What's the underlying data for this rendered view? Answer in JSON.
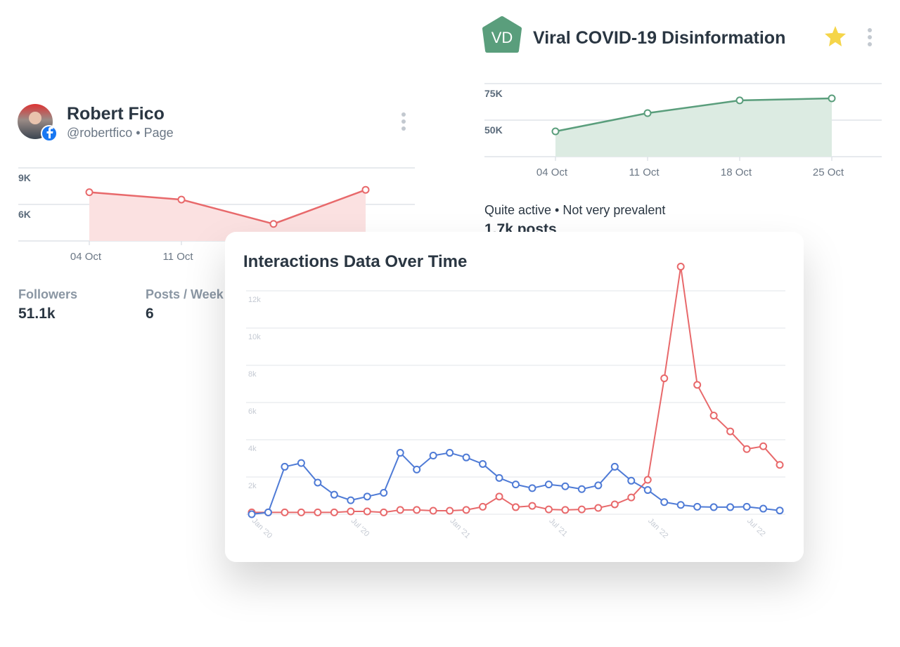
{
  "profile_card": {
    "name": "Robert Fico",
    "handle": "@robertfico • Page",
    "stats": [
      {
        "label": "Followers",
        "value": "51.1k"
      },
      {
        "label": "Posts / Week",
        "value": "6"
      }
    ]
  },
  "list_card": {
    "badge": "VD",
    "title": "Viral COVID-19 Disinformation",
    "summary": "Quite active • Not very prevalent",
    "posts": "1.7k posts"
  },
  "chart_data": [
    {
      "type": "line",
      "area": true,
      "color": "#e8696b",
      "fill": "#fbe1e1",
      "categories": [
        "04 Oct",
        "11 Oct",
        null,
        null
      ],
      "values": [
        7000,
        6400,
        4400,
        7200
      ],
      "ylim": [
        3000,
        9000
      ],
      "yticks": [
        {
          "value": 9000,
          "label": "9K"
        },
        {
          "value": 6000,
          "label": "6K"
        }
      ],
      "grid": true
    },
    {
      "type": "line",
      "area": true,
      "color": "#5a9e7c",
      "fill": "#dcebe2",
      "categories": [
        "04 Oct",
        "11 Oct",
        "18 Oct",
        "25 Oct"
      ],
      "values": [
        42300,
        54800,
        63500,
        64900
      ],
      "ylim": [
        25000,
        75000
      ],
      "yticks": [
        {
          "value": 75000,
          "label": "75K"
        },
        {
          "value": 50000,
          "label": "50K"
        }
      ],
      "grid": true
    },
    {
      "type": "line",
      "area": false,
      "title": "Interactions Data Over Time",
      "categories": [
        "Jan '20",
        null,
        null,
        null,
        null,
        null,
        "Jul '20",
        null,
        null,
        null,
        null,
        null,
        "Jan '21",
        null,
        null,
        null,
        null,
        null,
        "Jul '21",
        null,
        null,
        null,
        null,
        null,
        "Jan '22",
        null,
        null,
        null,
        null,
        null,
        "Jul '22",
        null,
        null
      ],
      "series": [
        {
          "color": "#e8696b",
          "values": [
            100,
            100,
            100,
            100,
            100,
            100,
            150,
            150,
            100,
            230,
            230,
            190,
            190,
            230,
            400,
            950,
            380,
            450,
            260,
            230,
            260,
            340,
            530,
            900,
            1850,
            7300,
            13300,
            6950,
            5300,
            4450,
            3500,
            3650,
            2650
          ]
        },
        {
          "color": "#4f7bd6",
          "values": [
            0,
            100,
            2550,
            2750,
            1700,
            1050,
            750,
            950,
            1150,
            3300,
            2400,
            3150,
            3300,
            3050,
            2700,
            1950,
            1600,
            1400,
            1600,
            1500,
            1350,
            1550,
            2550,
            1800,
            1300,
            650,
            500,
            400,
            380,
            380,
            400,
            300,
            200
          ]
        }
      ],
      "ylim": [
        0,
        14000
      ],
      "yticks": [
        {
          "value": 2000,
          "label": "2k"
        },
        {
          "value": 4000,
          "label": "4k"
        },
        {
          "value": 6000,
          "label": "6k"
        },
        {
          "value": 8000,
          "label": "8k"
        },
        {
          "value": 10000,
          "label": "10k"
        },
        {
          "value": 12000,
          "label": "12k"
        }
      ],
      "grid": true
    }
  ]
}
